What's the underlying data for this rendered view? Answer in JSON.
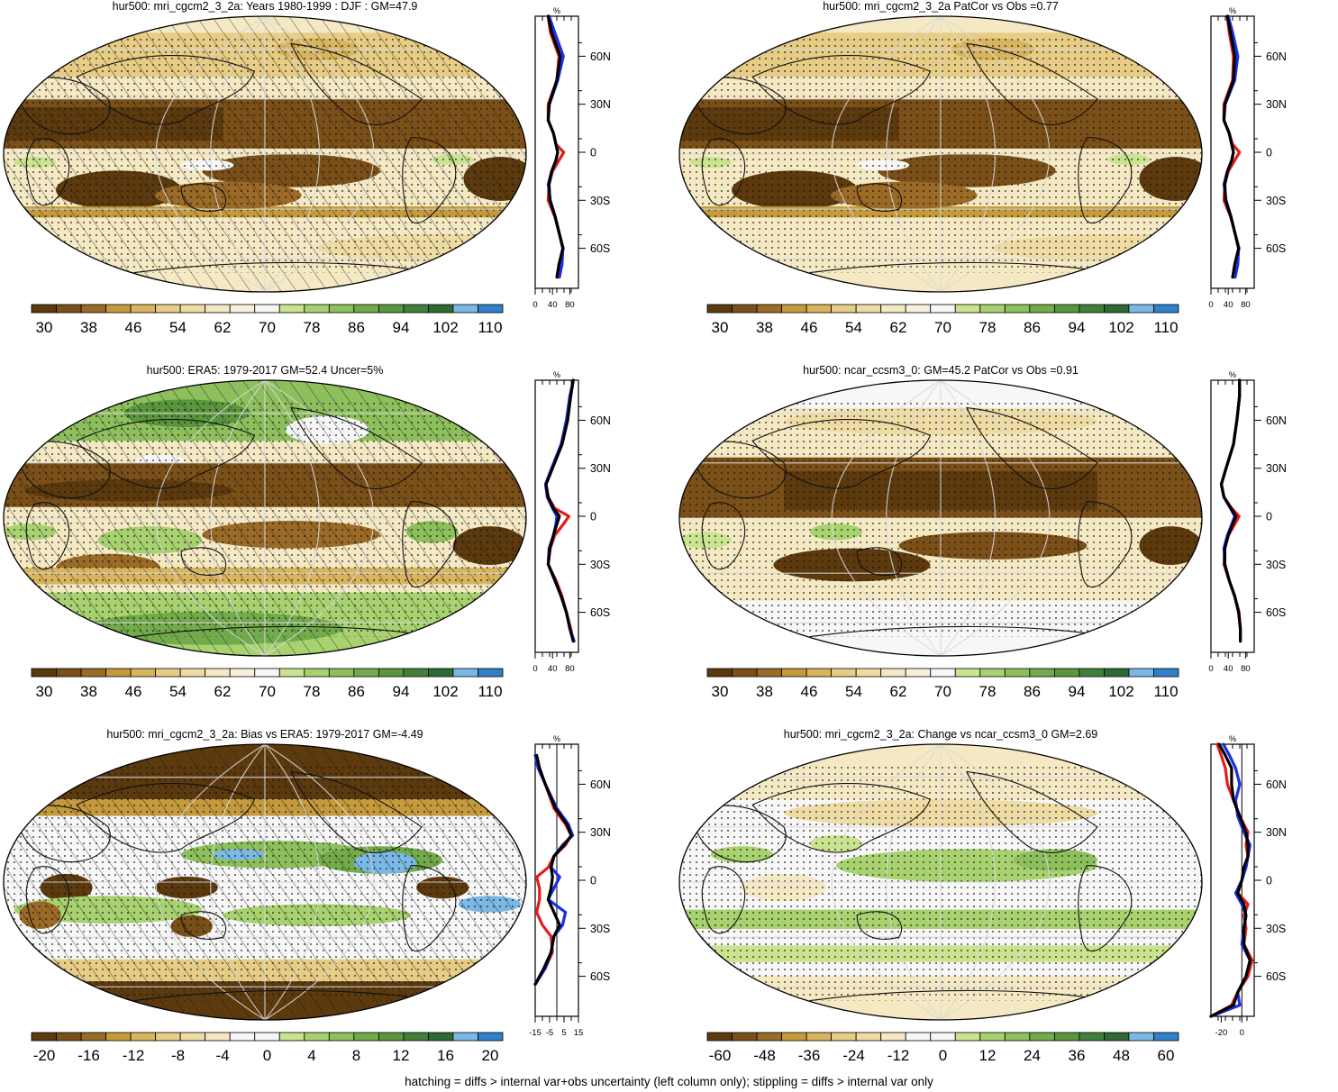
{
  "palettes": {
    "abs": [
      "#5c3a0e",
      "#7b5018",
      "#9a6a26",
      "#c49a3c",
      "#d8b45e",
      "#e6cc84",
      "#efdca4",
      "#f5e9c4",
      "#f7f1dc",
      "#f7f7f7",
      "#c9e38e",
      "#a8d270",
      "#8dc05c",
      "#72ab4a",
      "#5a963c",
      "#41803a",
      "#2f6a34",
      "#7ab8e6",
      "#2f7fc9"
    ],
    "diff": [
      "#5c3a0e",
      "#7b5018",
      "#9a6a26",
      "#c49a3c",
      "#d8b45e",
      "#e6cc84",
      "#efdca4",
      "#f5e9c4",
      "#f7f7f7",
      "#f7f7f7",
      "#c9e38e",
      "#a8d270",
      "#8dc05c",
      "#72ab4a",
      "#5a963c",
      "#41803a",
      "#2f6a34",
      "#7ab8e6",
      "#2f7fc9"
    ]
  },
  "line_colors": {
    "model": "#e51b1b",
    "obs": "#1a2ee8",
    "ref": "#000000"
  },
  "footnote": "hatching = diffs > internal var+obs uncertainty (left column only); stippling = diffs > internal var only",
  "panels": [
    {
      "id": "p1",
      "title": "hur500: mri_cgcm2_3_2a: Years 1980-1999 : DJF : GM=47.9",
      "map_style": "abs",
      "hatched": true,
      "colorbar": {
        "palette": "abs",
        "labels": [
          "30",
          "38",
          "46",
          "54",
          "62",
          "70",
          "78",
          "86",
          "94",
          "102",
          "110"
        ]
      },
      "chart_data": {
        "type": "line",
        "title": "%",
        "xlim": [
          0,
          100
        ],
        "xticks": [
          "0",
          "40",
          "80"
        ],
        "yticks": [
          "60N",
          "30N",
          "0",
          "30S",
          "60S"
        ],
        "lat": [
          85,
          75,
          60,
          45,
          30,
          20,
          12,
          5,
          0,
          -5,
          -12,
          -20,
          -30,
          -40,
          -50,
          -60,
          -70,
          -78
        ],
        "series": [
          {
            "color": "red",
            "values": [
              30,
              35,
              55,
              50,
              30,
              30,
              42,
              48,
              66,
              55,
              40,
              32,
              30,
              45,
              55,
              65,
              55,
              52
            ]
          },
          {
            "color": "blue",
            "values": [
              32,
              45,
              65,
              52,
              33,
              30,
              42,
              48,
              52,
              48,
              38,
              30,
              35,
              46,
              55,
              64,
              62,
              56
            ]
          },
          {
            "color": "black",
            "values": [
              30,
              38,
              58,
              50,
              32,
              30,
              42,
              48,
              52,
              48,
              38,
              32,
              34,
              46,
              55,
              64,
              55,
              50
            ]
          }
        ]
      }
    },
    {
      "id": "p2",
      "title": "hur500: mri_cgcm2_3_2a PatCor vs Obs =0.77",
      "map_style": "abs",
      "hatched": false,
      "colorbar": {
        "palette": "abs",
        "labels": [
          "30",
          "38",
          "46",
          "54",
          "62",
          "70",
          "78",
          "86",
          "94",
          "102",
          "110"
        ]
      },
      "chart_data": {
        "type": "line",
        "title": "%",
        "xlim": [
          0,
          100
        ],
        "xticks": [
          "0",
          "40",
          "80"
        ],
        "yticks": [
          "60N",
          "30N",
          "0",
          "30S",
          "60S"
        ],
        "lat": [
          85,
          75,
          60,
          45,
          30,
          20,
          12,
          5,
          0,
          -5,
          -12,
          -20,
          -30,
          -40,
          -50,
          -60,
          -70,
          -78
        ],
        "series": [
          {
            "color": "red",
            "values": [
              38,
              42,
              52,
              50,
              30,
              30,
              42,
              50,
              66,
              55,
              40,
              32,
              30,
              45,
              55,
              65,
              55,
              52
            ]
          },
          {
            "color": "blue",
            "values": [
              40,
              50,
              62,
              55,
              33,
              30,
              42,
              48,
              52,
              48,
              38,
              30,
              35,
              46,
              55,
              64,
              62,
              56
            ]
          },
          {
            "color": "black",
            "values": [
              38,
              45,
              55,
              52,
              32,
              30,
              42,
              48,
              52,
              48,
              38,
              32,
              34,
              46,
              55,
              64,
              55,
              50
            ]
          }
        ]
      }
    },
    {
      "id": "p3",
      "title": "hur500: ERA5: 1979-2017 GM=52.4 Uncer=5%",
      "map_style": "era",
      "hatched": true,
      "colorbar": {
        "palette": "abs",
        "labels": [
          "30",
          "38",
          "46",
          "54",
          "62",
          "70",
          "78",
          "86",
          "94",
          "102",
          "110"
        ]
      },
      "chart_data": {
        "type": "line",
        "title": "%",
        "xlim": [
          0,
          100
        ],
        "xticks": [
          "0",
          "40",
          "80"
        ],
        "yticks": [
          "60N",
          "30N",
          "0",
          "30S",
          "60S"
        ],
        "lat": [
          85,
          75,
          60,
          45,
          30,
          20,
          12,
          5,
          0,
          -5,
          -12,
          -20,
          -30,
          -40,
          -50,
          -60,
          -70,
          -78
        ],
        "series": [
          {
            "color": "red",
            "values": [
              88,
              82,
              75,
              62,
              40,
              25,
              30,
              45,
              78,
              65,
              45,
              35,
              30,
              48,
              62,
              72,
              82,
              88
            ]
          },
          {
            "color": "blue",
            "values": [
              88,
              80,
              72,
              60,
              38,
              24,
              28,
              40,
              50,
              48,
              42,
              32,
              30,
              45,
              60,
              72,
              80,
              90
            ]
          },
          {
            "color": "black",
            "values": [
              88,
              82,
              75,
              62,
              40,
              25,
              30,
              42,
              56,
              50,
              42,
              34,
              30,
              46,
              60,
              72,
              80,
              88
            ]
          }
        ]
      }
    },
    {
      "id": "p4",
      "title": "hur500: ncar_ccsm3_0: GM=45.2 PatCor vs Obs =0.91",
      "map_style": "ncar",
      "hatched": false,
      "colorbar": {
        "palette": "abs",
        "labels": [
          "30",
          "38",
          "46",
          "54",
          "62",
          "70",
          "78",
          "86",
          "94",
          "102",
          "110"
        ]
      },
      "chart_data": {
        "type": "line",
        "title": "%",
        "xlim": [
          0,
          100
        ],
        "xticks": [
          "0",
          "40",
          "80"
        ],
        "yticks": [
          "60N",
          "30N",
          "0",
          "30S",
          "60S"
        ],
        "lat": [
          85,
          75,
          60,
          45,
          30,
          20,
          12,
          5,
          0,
          -5,
          -12,
          -20,
          -30,
          -40,
          -50,
          -60,
          -70,
          -78
        ],
        "series": [
          {
            "color": "red",
            "values": [
              66,
              66,
              60,
              52,
              35,
              24,
              30,
              48,
              65,
              55,
              40,
              32,
              30,
              42,
              55,
              65,
              68,
              68
            ]
          },
          {
            "color": "blue",
            "values": [
              66,
              66,
              60,
              52,
              35,
              24,
              30,
              45,
              55,
              48,
              38,
              30,
              32,
              42,
              55,
              64,
              68,
              68
            ]
          },
          {
            "color": "black",
            "values": [
              66,
              66,
              60,
              52,
              35,
              24,
              30,
              46,
              58,
              50,
              40,
              32,
              32,
              42,
              55,
              64,
              68,
              68
            ]
          }
        ]
      }
    },
    {
      "id": "p5",
      "title": "hur500: mri_cgcm2_3_2a: Bias vs ERA5: 1979-2017 GM=-4.49",
      "map_style": "bias",
      "hatched": true,
      "colorbar": {
        "palette": "diff",
        "labels": [
          "-20",
          "-16",
          "-12",
          "-8",
          "-4",
          "0",
          "4",
          "8",
          "12",
          "16",
          "20"
        ]
      },
      "chart_data": {
        "type": "line",
        "title": "%",
        "xlim": [
          -15,
          15
        ],
        "zero_line": true,
        "xticks": [
          "-15",
          "-5",
          "5",
          "15"
        ],
        "yticks": [
          "60N",
          "30N",
          "0",
          "30S",
          "60S"
        ],
        "lat": [
          78,
          70,
          60,
          45,
          35,
          28,
          22,
          15,
          8,
          2,
          -5,
          -12,
          -20,
          -28,
          -35,
          -45,
          -55,
          -65
        ],
        "series": [
          {
            "color": "red",
            "values": [
              -14,
              -12,
              -8,
              -2,
              6,
              10,
              6,
              -2,
              -6,
              -14,
              -12,
              -12,
              -14,
              -10,
              -4,
              -3,
              -8,
              -15
            ]
          },
          {
            "color": "blue",
            "values": [
              -15,
              -13,
              -8,
              0,
              8,
              11,
              4,
              -2,
              -4,
              2,
              -2,
              -6,
              6,
              4,
              -2,
              -4,
              -8,
              -15
            ]
          },
          {
            "color": "black",
            "values": [
              -14,
              -12,
              -8,
              -1,
              7,
              10,
              5,
              -2,
              -4,
              -3,
              -4,
              -6,
              -2,
              2,
              -2,
              -4,
              -9,
              -15
            ]
          }
        ]
      }
    },
    {
      "id": "p6",
      "title": "hur500: mri_cgcm2_3_2a: Change vs ncar_ccsm3_0 GM=2.69",
      "map_style": "change",
      "hatched": false,
      "colorbar": {
        "palette": "diff",
        "labels": [
          "-60",
          "-48",
          "-36",
          "-24",
          "-12",
          "0",
          "12",
          "24",
          "36",
          "48",
          "60"
        ]
      },
      "chart_data": {
        "type": "line",
        "title": "%",
        "xlim": [
          -30,
          12
        ],
        "zero_line": true,
        "xticks": [
          "-20",
          "0"
        ],
        "yticks": [
          "60N",
          "30N",
          "0",
          "30S",
          "60S"
        ],
        "lat": [
          85,
          78,
          70,
          60,
          50,
          40,
          30,
          22,
          15,
          8,
          0,
          -8,
          -15,
          -22,
          -30,
          -40,
          -50,
          -60,
          -70,
          -78,
          -85
        ],
        "series": [
          {
            "color": "red",
            "values": [
              -24,
              -20,
              -16,
              -14,
              -8,
              -2,
              6,
              4,
              6,
              2,
              0,
              -4,
              6,
              2,
              4,
              2,
              10,
              6,
              -4,
              -10,
              -30
            ]
          },
          {
            "color": "blue",
            "values": [
              -18,
              -12,
              -6,
              -2,
              -6,
              -4,
              2,
              8,
              6,
              4,
              0,
              -6,
              0,
              4,
              2,
              0,
              8,
              4,
              -4,
              -2,
              -30
            ]
          },
          {
            "color": "black",
            "values": [
              -22,
              -16,
              -10,
              -10,
              -8,
              -2,
              4,
              6,
              6,
              2,
              0,
              -4,
              2,
              4,
              2,
              2,
              8,
              4,
              -4,
              -8,
              -30
            ]
          }
        ]
      }
    }
  ]
}
